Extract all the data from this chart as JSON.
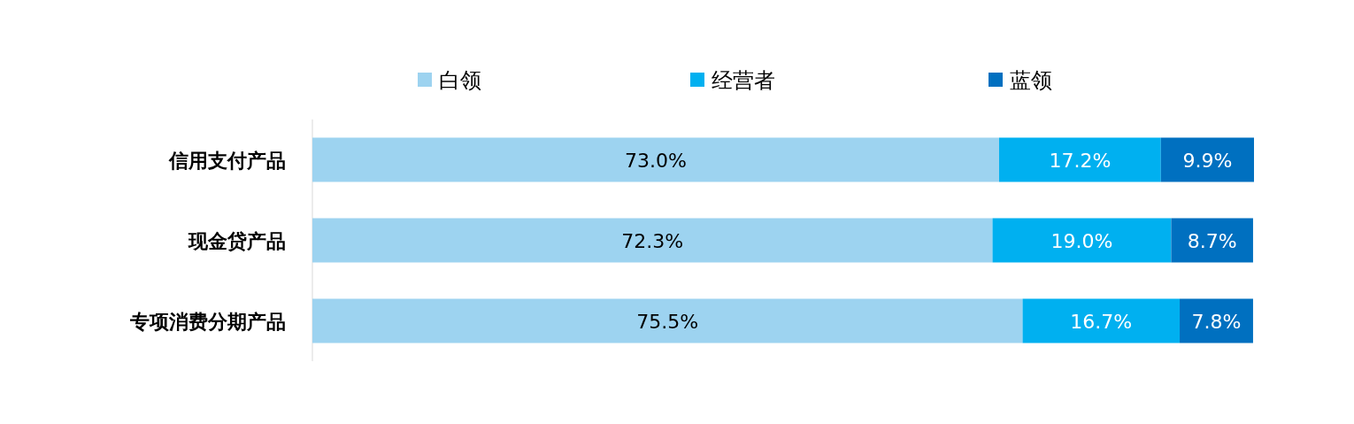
{
  "chart_data": {
    "type": "bar",
    "orientation": "horizontal",
    "stacked": true,
    "legend": "top",
    "tick_labels": "y",
    "xlim": [
      0,
      100.1
    ],
    "categories": [
      "信用支付产品",
      "现金贷产品",
      "专项消费分期产品"
    ],
    "series": [
      {
        "name": "白领",
        "color": "#9dd3f0",
        "values": [
          73.0,
          72.3,
          75.5
        ],
        "value_labels": [
          "73.0%",
          "72.3%",
          "75.5%"
        ]
      },
      {
        "name": "经营者",
        "color": "#00b0f0",
        "values": [
          17.2,
          19.0,
          16.7
        ],
        "value_labels": [
          "17.2%",
          "19.0%",
          "16.7%"
        ]
      },
      {
        "name": "蓝领",
        "color": "#0070c0",
        "values": [
          9.9,
          8.7,
          7.8
        ],
        "value_labels": [
          "9.9%",
          "8.7%",
          "7.8%"
        ]
      }
    ]
  }
}
